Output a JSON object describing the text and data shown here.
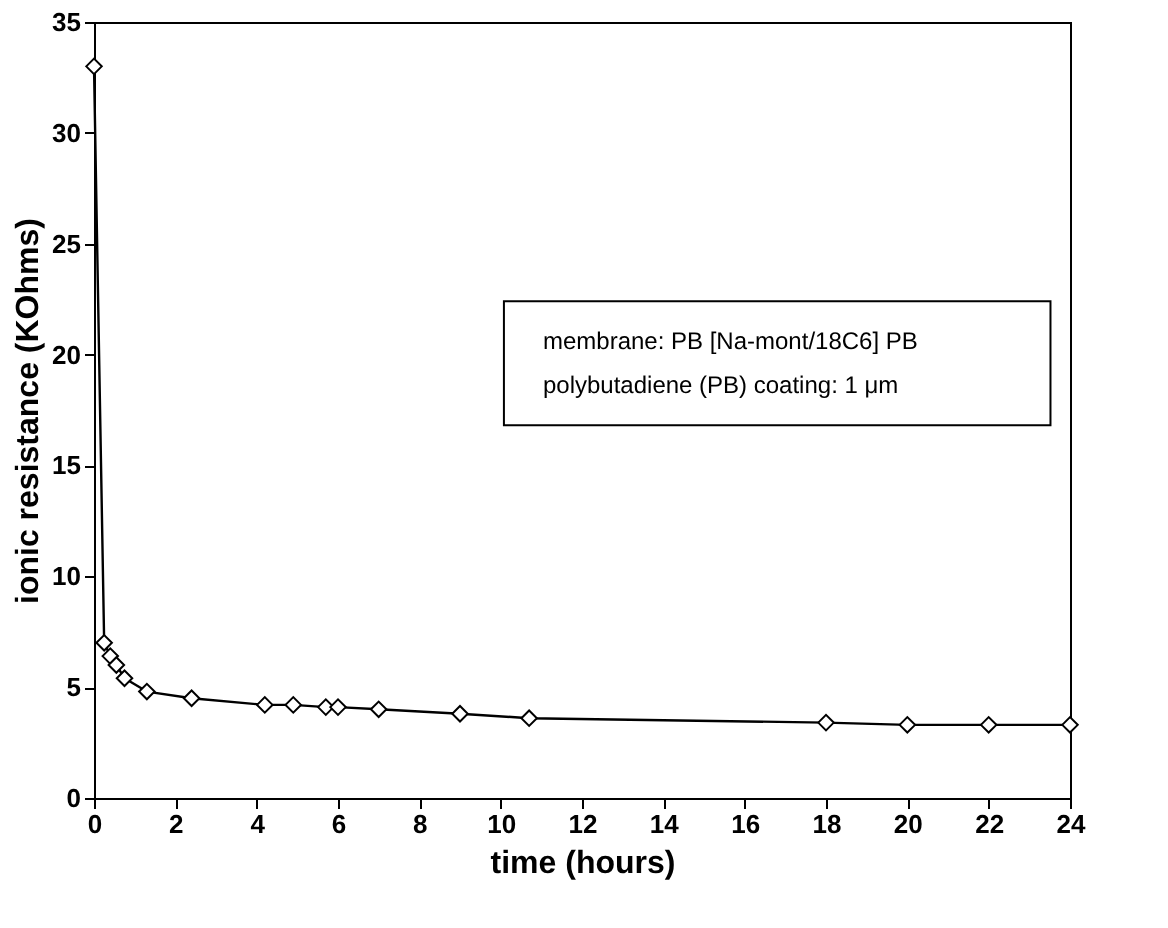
{
  "chart_data": {
    "type": "line",
    "xlabel": "time (hours)",
    "ylabel": "ionic resistance (KOhms)",
    "x": [
      0,
      0.25,
      0.4,
      0.55,
      0.75,
      1.3,
      2.4,
      4.2,
      4.9,
      5.7,
      6.0,
      7.0,
      9.0,
      10.7,
      18,
      20,
      22,
      24
    ],
    "series": [
      {
        "color": "#000000",
        "values": [
          33,
          7.0,
          6.4,
          6.0,
          5.4,
          4.8,
          4.5,
          4.2,
          4.2,
          4.1,
          4.1,
          4.0,
          3.8,
          3.6,
          3.4,
          3.3,
          3.3,
          3.3
        ]
      }
    ],
    "xlim": [
      0,
      24
    ],
    "xticks": [
      0,
      2,
      4,
      6,
      8,
      10,
      12,
      14,
      16,
      18,
      20,
      22,
      24
    ],
    "ylim": [
      0,
      35
    ],
    "yticks": [
      0,
      5,
      10,
      15,
      20,
      25,
      30,
      35
    ],
    "marker": "diamond",
    "line_style": "solid",
    "grid": false,
    "annotations": [
      "membrane: PB [Na-mont/18C6] PB",
      "polybutadiene (PB) coating: 1 μm"
    ]
  }
}
